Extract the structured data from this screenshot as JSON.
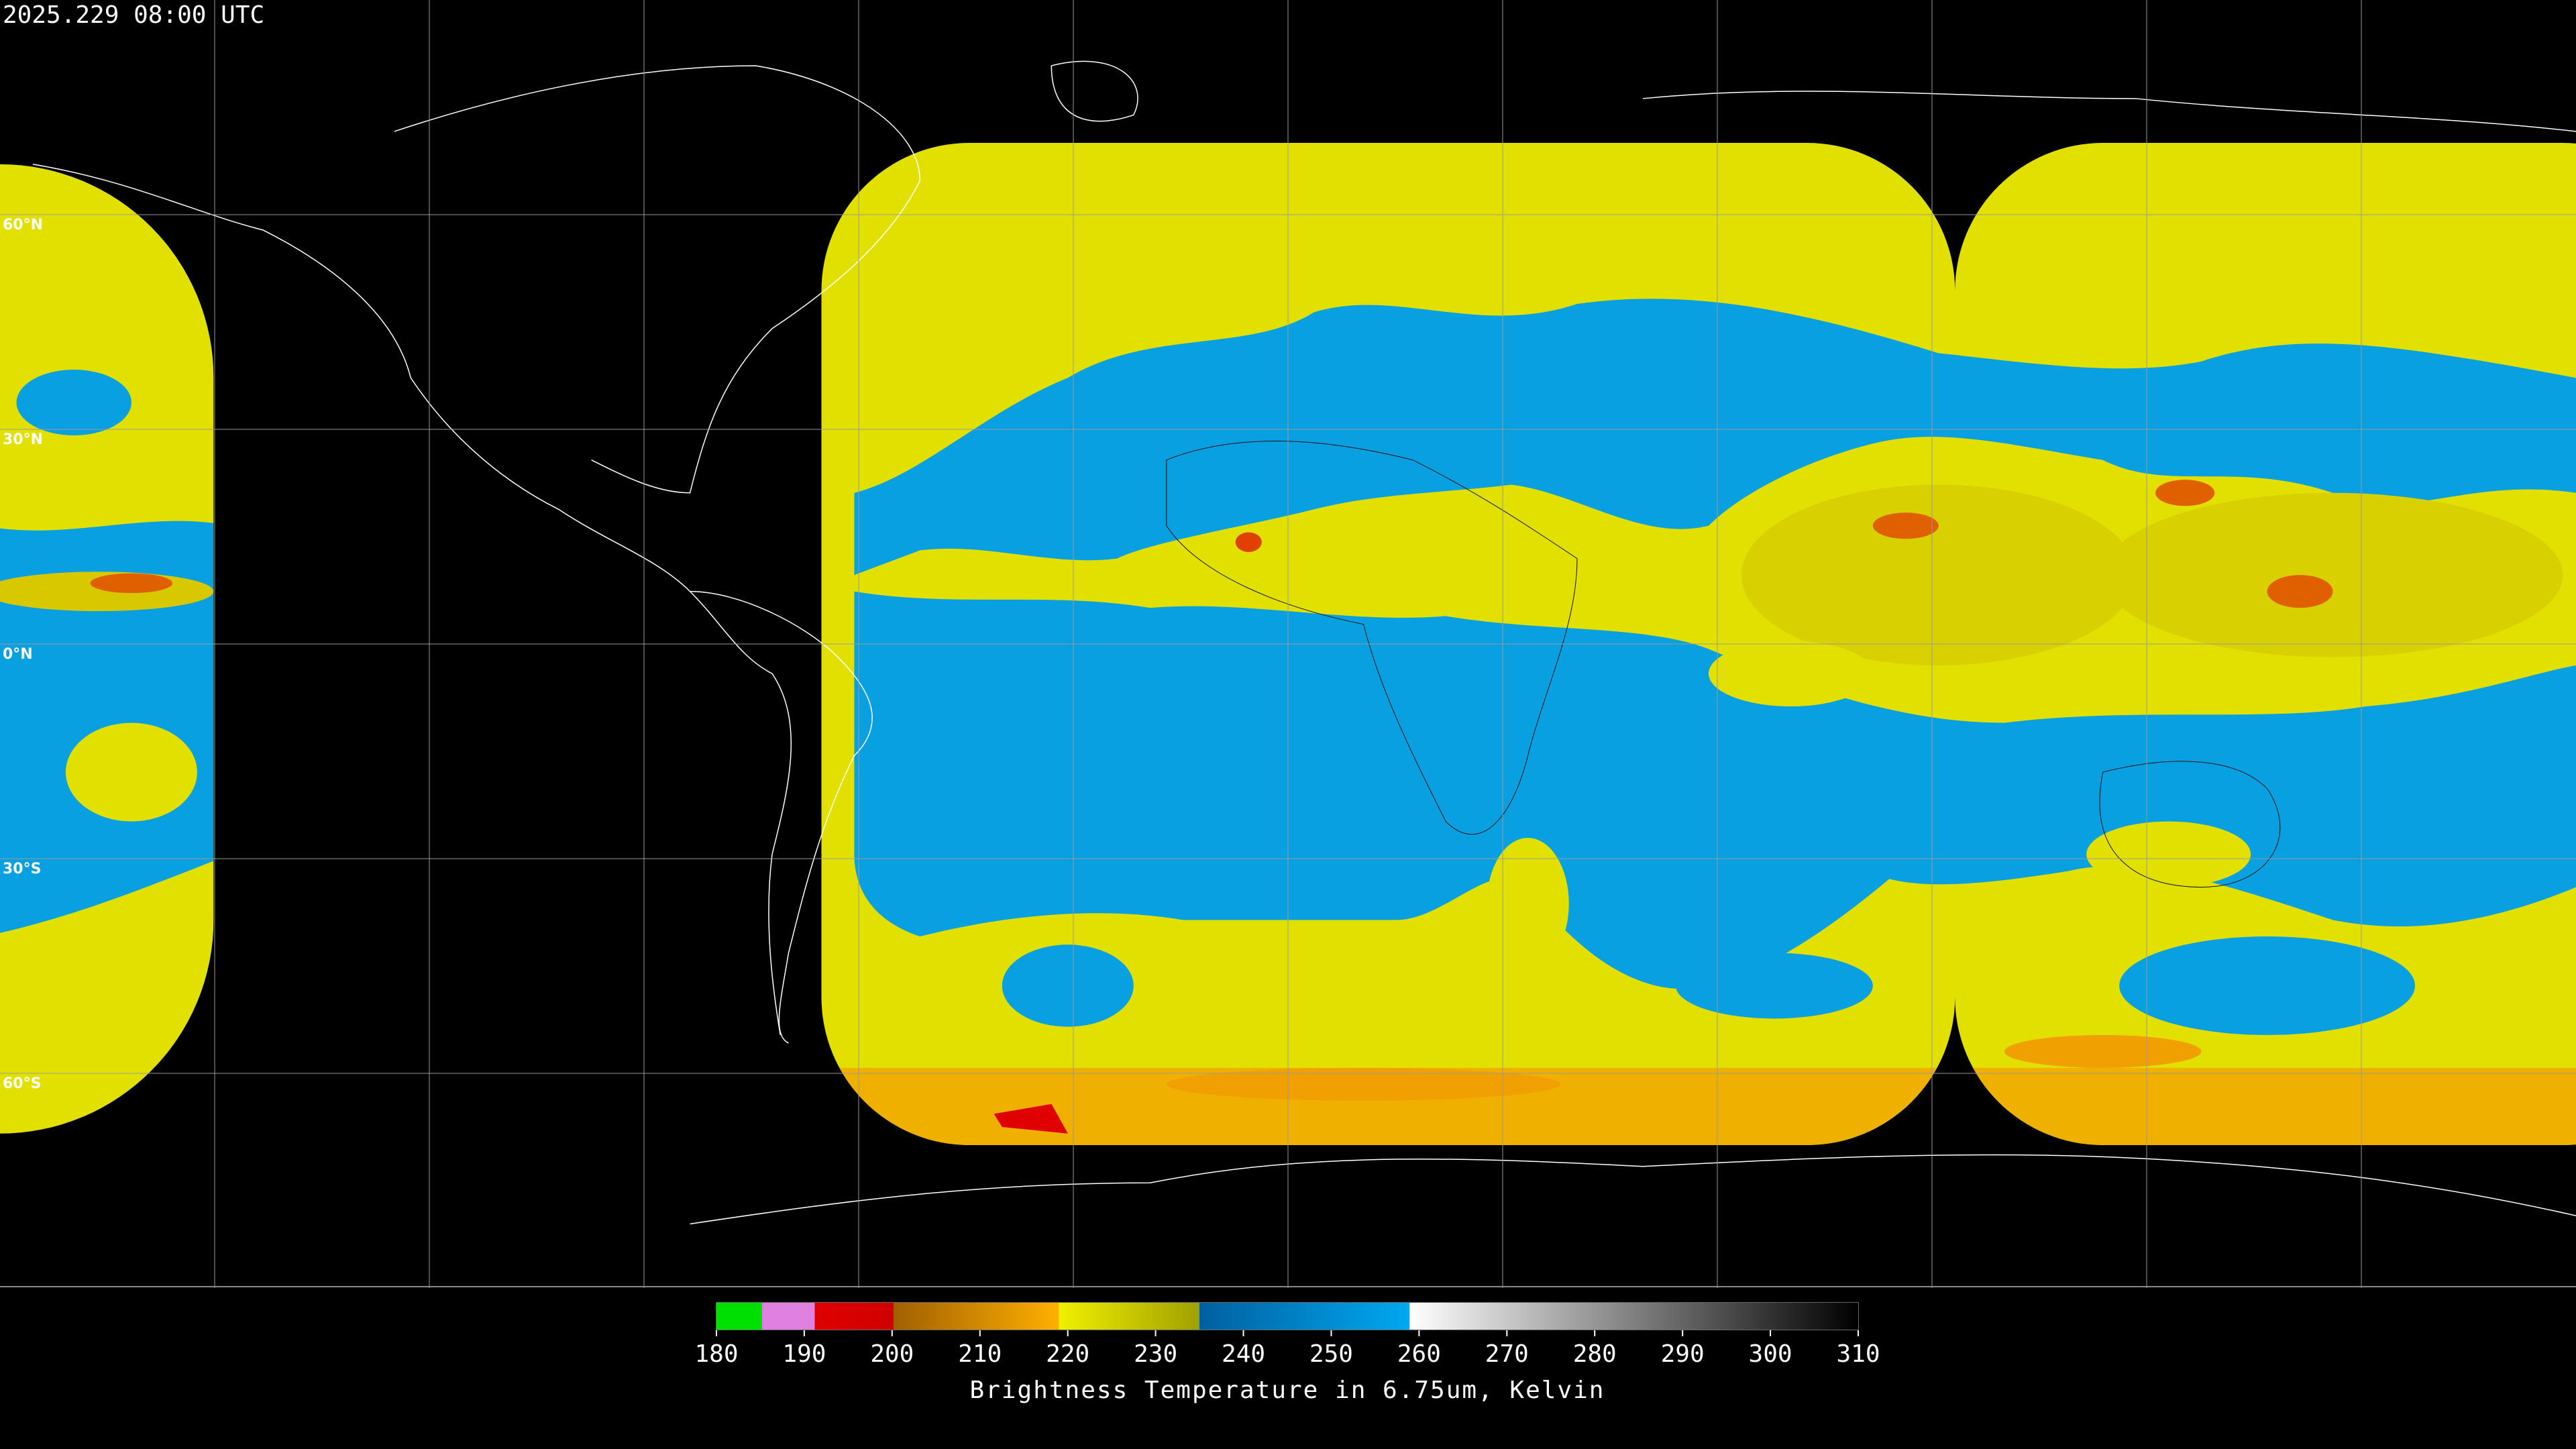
{
  "header": {
    "timestamp": "2025.229 08:00 UTC"
  },
  "map": {
    "latitude_labels": [
      "60°N",
      "30°N",
      "0°N",
      "30°S",
      "60°S"
    ]
  },
  "colorbar": {
    "range": [
      180,
      310
    ],
    "ticks": [
      180,
      190,
      200,
      210,
      220,
      230,
      240,
      250,
      260,
      270,
      280,
      290,
      300,
      310
    ],
    "title": "Brightness Temperature in 6.75um, Kelvin"
  }
}
